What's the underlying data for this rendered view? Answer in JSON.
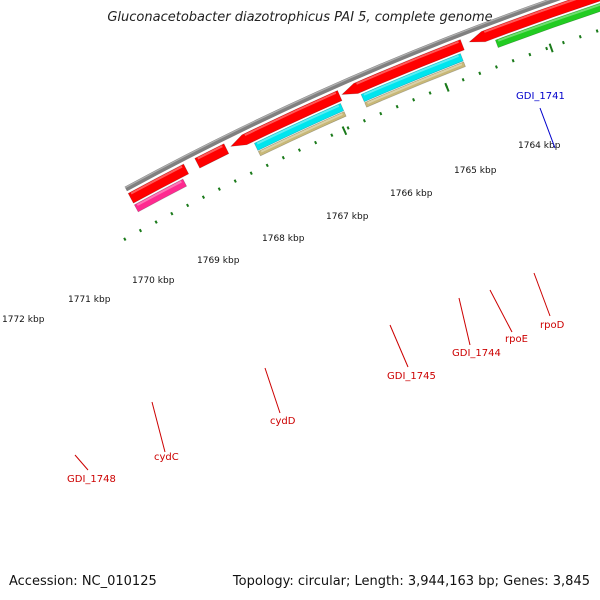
{
  "title": "Gluconacetobacter diazotrophicus PAI 5, complete genome",
  "footer": {
    "accession": "Accession: NC_010125",
    "summary": "Topology: circular; Length: 3,944,163 bp; Genes: 3,845"
  },
  "scale_labels": [
    "1772 kbp",
    "1771 kbp",
    "1770 kbp",
    "1769 kbp",
    "1768 kbp",
    "1767 kbp",
    "1766 kbp",
    "1765 kbp",
    "1764 kbp"
  ],
  "gene_labels": [
    {
      "text": "GDI_1741",
      "color": "#0000cc"
    },
    {
      "text": "GDI_1748",
      "color": "#cc0000"
    },
    {
      "text": "cydC",
      "color": "#cc0000"
    },
    {
      "text": "cydD",
      "color": "#cc0000"
    },
    {
      "text": "GDI_1745",
      "color": "#cc0000"
    },
    {
      "text": "GDI_1744",
      "color": "#cc0000"
    },
    {
      "text": "rpoE",
      "color": "#cc0000"
    },
    {
      "text": "rpoD",
      "color": "#cc0000"
    }
  ],
  "colors": {
    "backbone": "#808080",
    "cds": "#ff0000",
    "blue_feature": "#0000ee",
    "cyan_feature": "#00e5ee",
    "tan_feature": "#c8b878",
    "green_feature": "#22cc22",
    "orange_feature": "#ff8800",
    "pink_feature": "#ff2a90",
    "tick": "#1a7a1a"
  }
}
